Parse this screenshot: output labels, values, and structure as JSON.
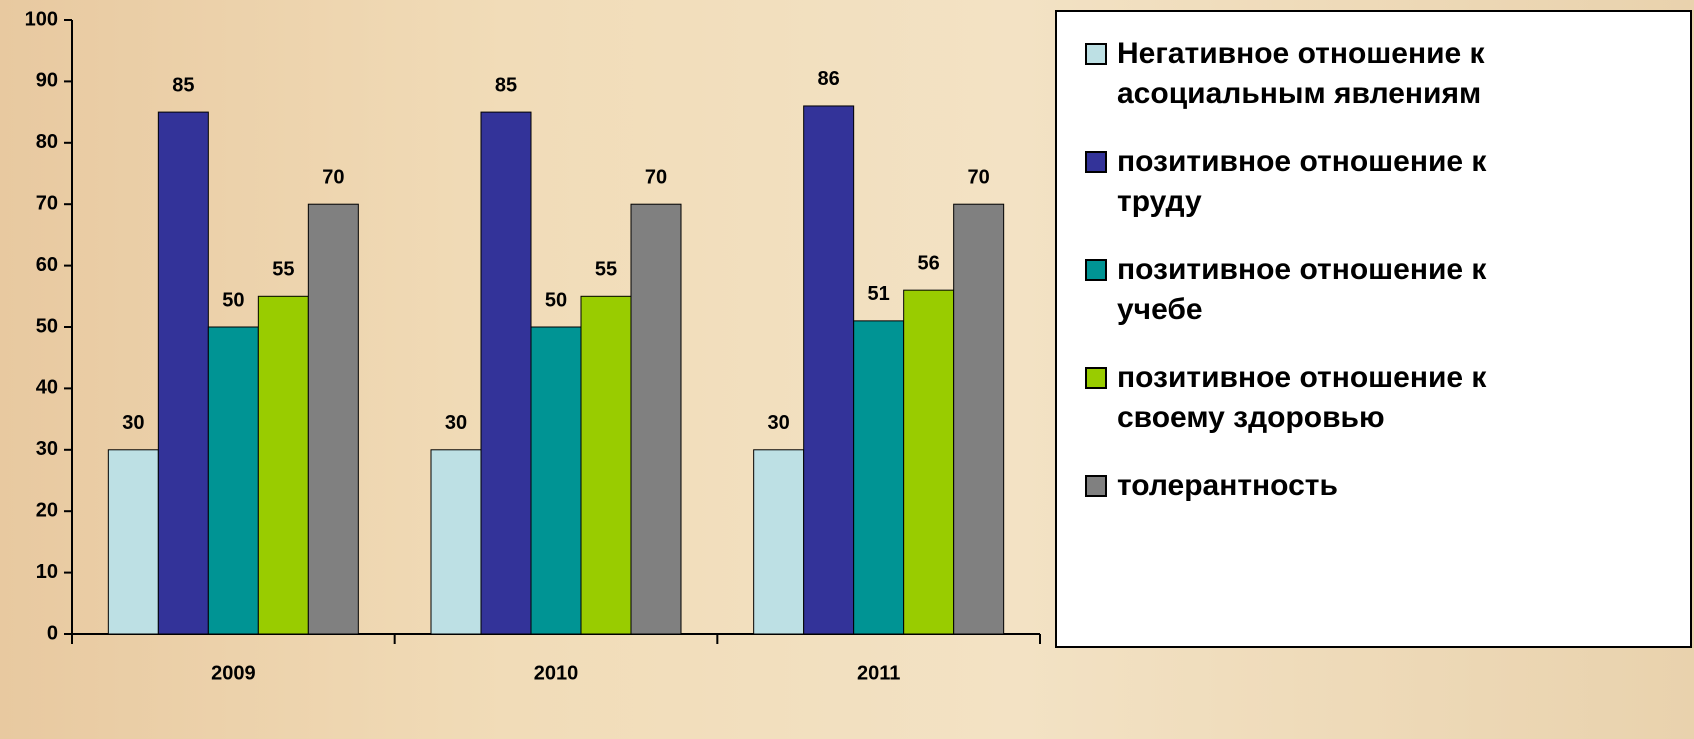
{
  "chart_data": {
    "type": "bar",
    "categories": [
      "2009",
      "2010",
      "2011"
    ],
    "series": [
      {
        "name": "Негативное отношение к асоциальным явлениям",
        "color": "#bde0e4",
        "values": [
          30,
          30,
          30
        ]
      },
      {
        "name": "позитивное отношение к труду",
        "color": "#333399",
        "values": [
          85,
          85,
          86
        ]
      },
      {
        "name": "позитивное отношение к учебе",
        "color": "#009494",
        "values": [
          50,
          50,
          51
        ]
      },
      {
        "name": "позитивное отношение к своему здоровью",
        "color": "#99cc00",
        "values": [
          55,
          55,
          56
        ]
      },
      {
        "name": "толерантность",
        "color": "#808080",
        "values": [
          70,
          70,
          70
        ]
      }
    ],
    "ylim": [
      0,
      100
    ],
    "yticks": [
      0,
      10,
      20,
      30,
      40,
      50,
      60,
      70,
      80,
      90,
      100
    ]
  }
}
